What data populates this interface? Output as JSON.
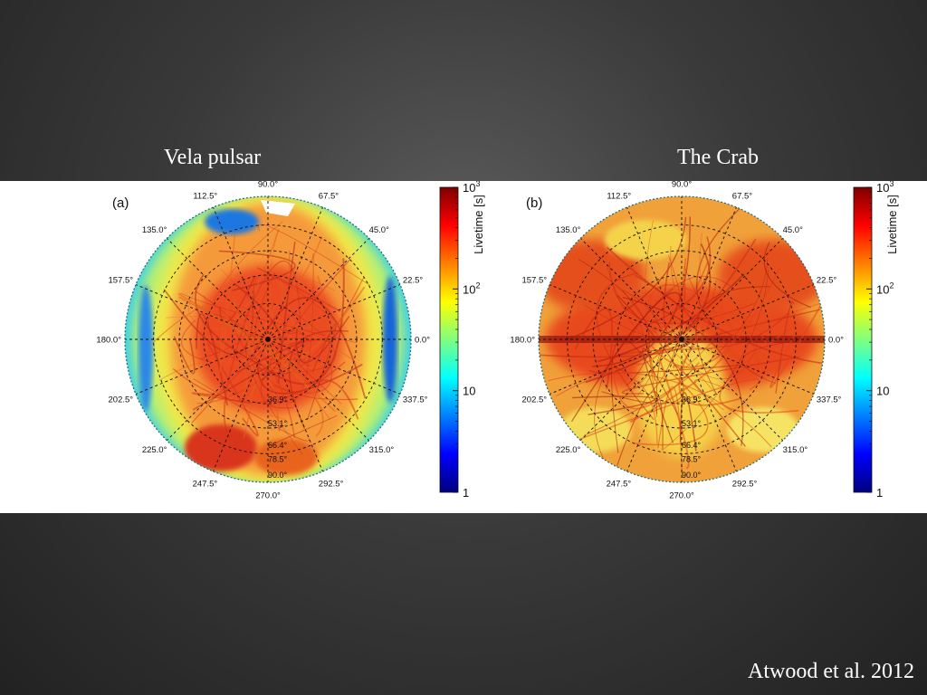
{
  "slide": {
    "title_left": "Vela pulsar",
    "title_right": "The Crab",
    "credit": "Atwood et al. 2012"
  },
  "colors": {
    "slide_bg": "#3a3a3a",
    "panel_bg": "#ffffff",
    "text": "#ffffff"
  },
  "panels": [
    {
      "label": "(a)",
      "pattern": "vela",
      "azimuth_labels": [
        "0.0°",
        "22.5°",
        "45.0°",
        "67.5°",
        "90.0°",
        "112.5°",
        "135.0°",
        "157.5°",
        "180.0°",
        "202.5°",
        "225.0°",
        "247.5°",
        "270.0°",
        "292.5°",
        "315.0°",
        "337.5°"
      ],
      "zenith_labels": [
        "36.9°",
        "53.1°",
        "66.4°",
        "78.5°",
        "90.0°"
      ]
    },
    {
      "label": "(b)",
      "pattern": "crab",
      "azimuth_labels": [
        "0.0°",
        "22.5°",
        "45.0°",
        "67.5°",
        "90.0°",
        "112.5°",
        "135.0°",
        "157.5°",
        "180.0°",
        "202.5°",
        "225.0°",
        "247.5°",
        "270.0°",
        "292.5°",
        "315.0°",
        "337.5°"
      ],
      "zenith_labels": [
        "36.9°",
        "53.1°",
        "66.4°",
        "78.5°",
        "90.0°"
      ]
    }
  ],
  "colorbar": {
    "label": "Livetime [s]",
    "scale": "log",
    "ticks": [
      {
        "value": 1,
        "label": "1"
      },
      {
        "value": 10,
        "label": "10"
      },
      {
        "value": 100,
        "label": "10",
        "exp": "2"
      },
      {
        "value": 1000,
        "label": "10",
        "exp": "3"
      }
    ],
    "stops": [
      "#00007f",
      "#0000ff",
      "#007fff",
      "#00ffff",
      "#7fff7f",
      "#ffff00",
      "#ff7f00",
      "#ff0000",
      "#7f0000"
    ]
  }
}
